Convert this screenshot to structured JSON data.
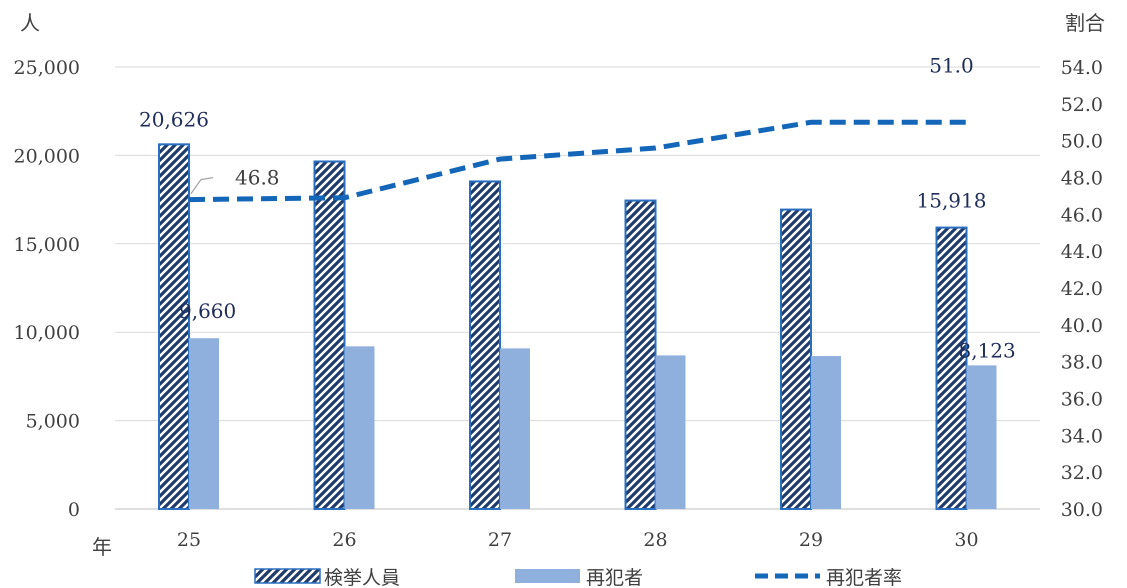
{
  "chart_data": {
    "type": "bar",
    "categories": [
      "25",
      "26",
      "27",
      "28",
      "29",
      "30"
    ],
    "x_unit": "年",
    "y_left_unit": "人",
    "y_right_unit": "割合",
    "y_left_lim": [
      0,
      25000
    ],
    "y_left_ticks": [
      "0",
      "5,000",
      "10,000",
      "15,000",
      "20,000",
      "25,000"
    ],
    "y_right_lim": [
      30,
      54
    ],
    "y_right_ticks": [
      "30.0",
      "32.0",
      "34.0",
      "36.0",
      "38.0",
      "40.0",
      "42.0",
      "44.0",
      "46.0",
      "48.0",
      "50.0",
      "52.0",
      "54.0"
    ],
    "series": [
      {
        "name": "検挙人員",
        "type": "bar",
        "axis": "left",
        "values": [
          20626,
          19656,
          18528,
          17446,
          16936,
          15918
        ],
        "labels": [
          "20,626",
          "",
          "",
          "",
          "",
          "15,918"
        ]
      },
      {
        "name": "再犯者",
        "type": "bar",
        "axis": "left",
        "values": [
          9660,
          9199,
          9085,
          8687,
          8650,
          8123
        ],
        "labels": [
          "9,660",
          "",
          "",
          "",
          "",
          "8,123"
        ]
      },
      {
        "name": "再犯者率",
        "type": "line",
        "axis": "right",
        "values": [
          46.8,
          46.9,
          49.0,
          49.6,
          51.0,
          51.0
        ],
        "labels": [
          "46.8",
          "",
          "",
          "",
          "",
          "51.0"
        ]
      }
    ],
    "grid": true,
    "legend": "bottom",
    "colors": {
      "hatch": "#1f3b6e",
      "bar_outline": "#2a6fbf",
      "bar2": "#8fb0dc",
      "line": "#1467b8",
      "grid": "#d9d9d9"
    }
  }
}
